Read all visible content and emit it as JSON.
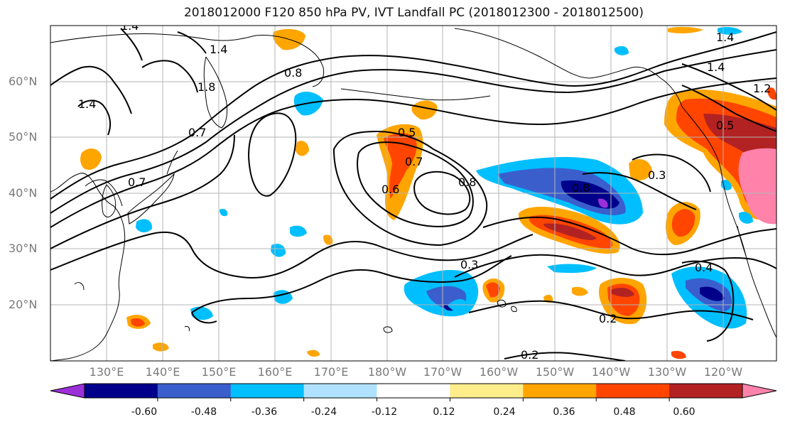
{
  "title": "2018012000 F120 850 hPa PV, IVT Landfall PC (2018012300 - 2018012500)",
  "lat_labels": [
    "60°N",
    "50°N",
    "40°N",
    "30°N",
    "20°N"
  ],
  "lon_labels": [
    "130°E",
    "140°E",
    "150°E",
    "160°E",
    "170°E",
    "180°W",
    "170°W",
    "160°W",
    "150°W",
    "140°W",
    "130°W",
    "120°W"
  ],
  "contour_labels": [
    "1.4",
    "1.4",
    "1.4",
    "1.4",
    "1.2",
    "0.8",
    "1.8",
    "1.4",
    "0.5",
    "0.7",
    "0.6",
    "0.8",
    "0.7",
    "0.8",
    "0.3",
    "0.3",
    "0.4",
    "0.2",
    "0.2",
    "0.7",
    "0.5"
  ],
  "colorbar": {
    "ticks": [
      "-0.60",
      "-0.48",
      "-0.36",
      "-0.24",
      "-0.12",
      "0.12",
      "0.24",
      "0.36",
      "0.48",
      "0.60"
    ],
    "colors": [
      "#9b30d9",
      "#00008b",
      "#3a5fcd",
      "#00bfff",
      "#b0e2ff",
      "#ffffff",
      "#ffec8b",
      "#ffa500",
      "#ff4500",
      "#b22222",
      "#ff82ab"
    ]
  },
  "shading_colors": {
    "neg_strong": "#00008b",
    "neg_med": "#3a5fcd",
    "neg_light": "#00bfff",
    "neg_faint": "#b0e2ff",
    "pos_faint": "#ffec8b",
    "pos_light": "#ffa500",
    "pos_med": "#ff4500",
    "pos_strong": "#b22222",
    "pos_max": "#ff82ab",
    "neg_max": "#9b30d9"
  }
}
